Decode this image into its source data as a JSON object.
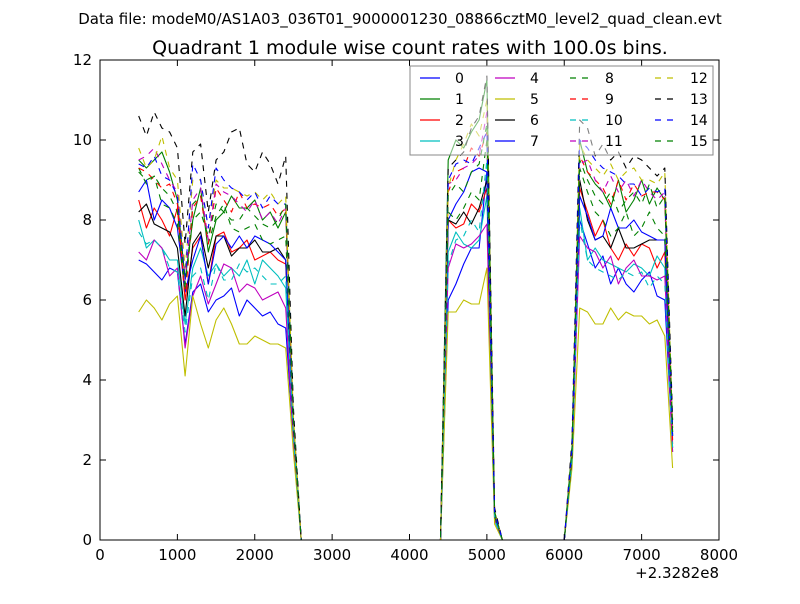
{
  "chart_data": {
    "type": "line",
    "suptitle": "Data file: modeM0/AS1A03_036T01_9000001230_08866cztM0_level2_quad_clean.evt",
    "title": "Quadrant 1 module wise count rates with 100.0s bins.",
    "xlabel": "",
    "ylabel": "",
    "xlim": [
      0,
      8000
    ],
    "ylim": [
      0,
      12
    ],
    "x_offset_label": "+2.3282e8",
    "xticks": [
      "0",
      "1000",
      "2000",
      "3000",
      "4000",
      "5000",
      "6000",
      "7000",
      "8000"
    ],
    "yticks": [
      "0",
      "2",
      "4",
      "6",
      "8",
      "10",
      "12"
    ],
    "grid": false,
    "legend_position": "top-right",
    "x": [
      500,
      600,
      700,
      800,
      900,
      1000,
      1100,
      1200,
      1300,
      1400,
      1500,
      1600,
      1700,
      1800,
      1900,
      2000,
      2100,
      2200,
      2300,
      2400,
      2500,
      2600,
      2700,
      2800,
      2900,
      3000,
      3100,
      3200,
      3300,
      3400,
      3500,
      3600,
      3700,
      3800,
      3900,
      4000,
      4100,
      4200,
      4300,
      4400,
      4500,
      4600,
      4700,
      4800,
      4900,
      5000,
      5100,
      5200,
      5300,
      5400,
      5500,
      5600,
      5700,
      5800,
      5900,
      6000,
      6100,
      6200,
      6300,
      6400,
      6500,
      6600,
      6700,
      6800,
      6900,
      7000,
      7100,
      7200,
      7300,
      7400
    ],
    "series": [
      {
        "name": "0",
        "color": "#0000ff",
        "dash": false,
        "values": [
          7.0,
          6.9,
          6.7,
          6.5,
          6.8,
          6.7,
          4.9,
          6.2,
          6.4,
          5.7,
          6.0,
          6.1,
          6.3,
          5.6,
          6.0,
          5.8,
          5.6,
          5.7,
          5.4,
          5.3,
          2.5,
          0,
          0,
          0,
          0,
          0,
          0,
          0,
          0,
          0,
          0,
          0,
          0,
          0,
          0,
          0,
          0,
          0,
          0,
          0,
          6.0,
          6.4,
          6.9,
          7.3,
          7.3,
          9.2,
          0.5,
          0,
          0,
          0,
          0,
          0,
          0,
          0,
          0,
          0,
          2.0,
          8.0,
          7.4,
          6.8,
          7.1,
          6.4,
          6.8,
          6.4,
          6.2,
          6.5,
          6.7,
          6.1,
          6.0,
          2.3
        ]
      },
      {
        "name": "1",
        "color": "#008000",
        "dash": false,
        "values": [
          9.5,
          9.3,
          9.5,
          9.7,
          9.2,
          8.5,
          6.5,
          8.0,
          8.8,
          7.2,
          8.0,
          8.2,
          8.6,
          8.3,
          8.3,
          8.5,
          8.0,
          8.2,
          7.8,
          8.2,
          3.0,
          0,
          0,
          0,
          0,
          0,
          0,
          0,
          0,
          0,
          0,
          0,
          0,
          0,
          0,
          0,
          0,
          0,
          0,
          0,
          9.5,
          10.0,
          9.8,
          10.2,
          10.5,
          11.5,
          0.6,
          0,
          0,
          0,
          0,
          0,
          0,
          0,
          0,
          0,
          2.2,
          10.0,
          9.2,
          8.9,
          8.7,
          8.3,
          9.0,
          8.2,
          8.5,
          9.0,
          8.4,
          8.8,
          8.5,
          2.8
        ]
      },
      {
        "name": "2",
        "color": "#ff0000",
        "dash": false,
        "values": [
          8.5,
          7.8,
          8.3,
          8.0,
          7.6,
          8.3,
          6.0,
          7.3,
          7.6,
          6.4,
          7.6,
          7.7,
          7.2,
          7.3,
          7.5,
          7.0,
          7.1,
          7.2,
          7.0,
          6.9,
          2.8,
          0,
          0,
          0,
          0,
          0,
          0,
          0,
          0,
          0,
          0,
          0,
          0,
          0,
          0,
          0,
          0,
          0,
          0,
          0,
          8.0,
          7.8,
          7.9,
          8.4,
          8.2,
          8.8,
          0.6,
          0,
          0,
          0,
          0,
          0,
          0,
          0,
          0,
          0,
          2.1,
          8.8,
          8.2,
          7.6,
          8.0,
          7.3,
          7.0,
          7.4,
          7.1,
          7.4,
          7.3,
          6.8,
          7.2,
          2.4
        ]
      },
      {
        "name": "3",
        "color": "#00bfbf",
        "dash": false,
        "values": [
          8.0,
          7.3,
          7.5,
          7.3,
          7.0,
          7.0,
          5.4,
          6.8,
          7.3,
          6.6,
          6.9,
          6.6,
          6.8,
          6.6,
          7.0,
          6.4,
          7.0,
          6.8,
          6.6,
          6.3,
          2.6,
          0,
          0,
          0,
          0,
          0,
          0,
          0,
          0,
          0,
          0,
          0,
          0,
          0,
          0,
          0,
          0,
          0,
          0,
          0,
          7.2,
          7.7,
          7.4,
          7.3,
          7.5,
          8.6,
          0.6,
          0,
          0,
          0,
          0,
          0,
          0,
          0,
          0,
          0,
          2.0,
          8.3,
          7.0,
          7.3,
          7.0,
          6.9,
          6.8,
          6.7,
          6.9,
          6.8,
          6.6,
          7.1,
          6.8,
          2.2
        ]
      },
      {
        "name": "4",
        "color": "#bf00bf",
        "dash": false,
        "values": [
          7.2,
          7.0,
          7.5,
          7.3,
          6.6,
          6.8,
          4.8,
          6.1,
          6.6,
          5.9,
          6.4,
          6.9,
          6.8,
          6.2,
          6.4,
          6.3,
          6.0,
          6.1,
          6.2,
          5.8,
          2.5,
          0,
          0,
          0,
          0,
          0,
          0,
          0,
          0,
          0,
          0,
          0,
          0,
          0,
          0,
          0,
          0,
          0,
          0,
          0,
          6.8,
          7.4,
          7.3,
          7.4,
          7.6,
          7.9,
          0.5,
          0,
          0,
          0,
          0,
          0,
          0,
          0,
          0,
          0,
          2.0,
          7.6,
          7.3,
          7.2,
          6.8,
          7.1,
          6.4,
          6.8,
          7.0,
          6.6,
          6.6,
          6.5,
          6.6,
          2.2
        ]
      },
      {
        "name": "5",
        "color": "#bfbf00",
        "dash": false,
        "values": [
          5.7,
          6.0,
          5.8,
          5.5,
          5.9,
          6.1,
          4.1,
          6.1,
          5.4,
          4.8,
          5.5,
          5.8,
          5.4,
          4.9,
          4.9,
          5.1,
          5.0,
          4.9,
          4.9,
          4.8,
          2.2,
          0,
          0,
          0,
          0,
          0,
          0,
          0,
          0,
          0,
          0,
          0,
          0,
          0,
          0,
          0,
          0,
          0,
          0,
          0,
          5.7,
          5.7,
          6.0,
          5.9,
          5.9,
          6.8,
          0.4,
          0,
          0,
          0,
          0,
          0,
          0,
          0,
          0,
          0,
          1.8,
          5.8,
          5.7,
          5.4,
          5.4,
          5.8,
          5.5,
          5.7,
          5.6,
          5.6,
          5.4,
          5.5,
          5.1,
          1.8
        ]
      },
      {
        "name": "6",
        "color": "#000000",
        "dash": false,
        "values": [
          8.2,
          8.4,
          7.9,
          7.8,
          7.7,
          7.3,
          5.6,
          7.4,
          7.7,
          6.8,
          7.6,
          7.6,
          7.1,
          7.3,
          7.3,
          7.5,
          7.2,
          7.2,
          7.3,
          7.0,
          2.8,
          0,
          0,
          0,
          0,
          0,
          0,
          0,
          0,
          0,
          0,
          0,
          0,
          0,
          0,
          0,
          0,
          0,
          0,
          0,
          8.0,
          7.9,
          8.2,
          7.9,
          8.3,
          9.0,
          0.6,
          0,
          0,
          0,
          0,
          0,
          0,
          0,
          0,
          0,
          2.1,
          9.0,
          8.0,
          7.5,
          7.6,
          7.3,
          7.8,
          7.3,
          7.3,
          7.4,
          7.5,
          7.5,
          7.5,
          2.6
        ]
      },
      {
        "name": "7",
        "color": "#0000ff",
        "dash": false,
        "values": [
          8.7,
          9.0,
          8.0,
          8.5,
          8.3,
          7.8,
          6.2,
          7.0,
          7.6,
          6.4,
          7.4,
          7.6,
          7.3,
          7.6,
          7.3,
          7.6,
          7.5,
          7.4,
          7.2,
          7.0,
          2.9,
          0,
          0,
          0,
          0,
          0,
          0,
          0,
          0,
          0,
          0,
          0,
          0,
          0,
          0,
          0,
          0,
          0,
          0,
          0,
          8.0,
          8.4,
          8.7,
          9.2,
          9.3,
          9.2,
          0.6,
          0,
          0,
          0,
          0,
          0,
          0,
          0,
          0,
          0,
          2.2,
          8.6,
          8.1,
          7.5,
          7.6,
          8.3,
          7.8,
          7.8,
          8.0,
          7.7,
          7.6,
          7.5,
          7.5,
          2.6
        ]
      },
      {
        "name": "8",
        "color": "#008000",
        "dash": true,
        "values": [
          9.3,
          8.9,
          9.1,
          8.4,
          8.3,
          7.9,
          6.2,
          8.4,
          8.6,
          7.4,
          8.1,
          8.4,
          7.8,
          7.7,
          7.8,
          7.9,
          7.5,
          7.4,
          7.5,
          7.6,
          2.9,
          0,
          0,
          0,
          0,
          0,
          0,
          0,
          0,
          0,
          0,
          0,
          0,
          0,
          0,
          0,
          0,
          0,
          0,
          0,
          8.2,
          8.0,
          8.3,
          8.7,
          8.5,
          10.0,
          0.6,
          0,
          0,
          0,
          0,
          0,
          0,
          0,
          0,
          0,
          2.2,
          9.3,
          8.7,
          8.2,
          8.0,
          7.6,
          7.8,
          8.2,
          7.6,
          7.8,
          8.2,
          7.8,
          7.6,
          2.7
        ]
      },
      {
        "name": "9",
        "color": "#ff0000",
        "dash": true,
        "values": [
          9.3,
          9.2,
          9.0,
          8.8,
          8.9,
          8.4,
          6.0,
          8.3,
          8.6,
          7.4,
          8.8,
          8.5,
          8.2,
          8.7,
          8.3,
          8.4,
          8.3,
          8.4,
          8.1,
          8.3,
          3.0,
          0,
          0,
          0,
          0,
          0,
          0,
          0,
          0,
          0,
          0,
          0,
          0,
          0,
          0,
          0,
          0,
          0,
          0,
          0,
          8.7,
          9.2,
          9.3,
          9.8,
          9.6,
          10.2,
          0.7,
          0,
          0,
          0,
          0,
          0,
          0,
          0,
          0,
          0,
          2.3,
          9.6,
          9.2,
          9.0,
          8.8,
          8.4,
          9.0,
          8.5,
          8.9,
          8.6,
          8.7,
          8.7,
          8.5,
          2.5
        ]
      },
      {
        "name": "10",
        "color": "#00bfbf",
        "dash": true,
        "values": [
          7.7,
          7.4,
          7.5,
          7.3,
          6.8,
          6.7,
          5.2,
          6.6,
          6.8,
          6.0,
          6.9,
          6.5,
          6.5,
          6.9,
          6.7,
          6.8,
          6.6,
          6.4,
          6.4,
          6.6,
          2.6,
          0,
          0,
          0,
          0,
          0,
          0,
          0,
          0,
          0,
          0,
          0,
          0,
          0,
          0,
          0,
          0,
          0,
          0,
          0,
          6.9,
          7.5,
          7.6,
          8.0,
          7.7,
          9.5,
          0.5,
          0,
          0,
          0,
          0,
          0,
          0,
          0,
          0,
          0,
          2.0,
          8.0,
          7.0,
          6.8,
          6.7,
          6.6,
          6.5,
          6.7,
          6.6,
          6.7,
          6.3,
          6.6,
          6.4,
          2.3
        ]
      },
      {
        "name": "11",
        "color": "#bf00bf",
        "dash": true,
        "values": [
          9.5,
          9.6,
          9.8,
          9.4,
          9.0,
          8.7,
          6.5,
          8.5,
          8.8,
          7.5,
          8.9,
          8.7,
          8.6,
          8.4,
          8.2,
          8.5,
          8.0,
          8.2,
          7.9,
          8.3,
          3.0,
          0,
          0,
          0,
          0,
          0,
          0,
          0,
          0,
          0,
          0,
          0,
          0,
          0,
          0,
          0,
          0,
          0,
          0,
          0,
          8.9,
          9.0,
          9.3,
          9.4,
          9.6,
          10.7,
          0.7,
          0,
          0,
          0,
          0,
          0,
          0,
          0,
          0,
          0,
          2.3,
          9.4,
          9.5,
          9.0,
          8.7,
          9.1,
          8.7,
          9.0,
          8.6,
          9.0,
          8.7,
          8.5,
          8.7,
          2.6
        ]
      },
      {
        "name": "12",
        "color": "#bfbf00",
        "dash": true,
        "values": [
          9.8,
          9.3,
          9.5,
          10.1,
          9.3,
          9.0,
          6.8,
          9.0,
          9.0,
          7.8,
          9.0,
          8.8,
          8.8,
          8.7,
          8.6,
          8.7,
          8.5,
          8.7,
          8.4,
          8.6,
          3.1,
          0,
          0,
          0,
          0,
          0,
          0,
          0,
          0,
          0,
          0,
          0,
          0,
          0,
          0,
          0,
          0,
          0,
          0,
          0,
          8.8,
          9.5,
          9.9,
          10.4,
          10.1,
          11.0,
          0.7,
          0,
          0,
          0,
          0,
          0,
          0,
          0,
          0,
          0,
          2.3,
          9.9,
          9.5,
          9.3,
          9.1,
          9.4,
          9.0,
          9.2,
          9.3,
          9.0,
          9.0,
          8.9,
          9.2,
          2.8
        ]
      },
      {
        "name": "13",
        "color": "#000000",
        "dash": true,
        "values": [
          10.6,
          10.1,
          10.7,
          10.3,
          10.2,
          9.8,
          7.4,
          9.7,
          9.9,
          8.2,
          9.5,
          9.7,
          10.2,
          10.3,
          9.4,
          9.2,
          9.7,
          9.4,
          8.9,
          9.6,
          3.3,
          0,
          0,
          0,
          0,
          0,
          0,
          0,
          0,
          0,
          0,
          0,
          0,
          0,
          0,
          0,
          0,
          0,
          0,
          0,
          9.3,
          9.5,
          9.7,
          10.3,
          10.6,
          11.6,
          0.8,
          0,
          0,
          0,
          0,
          0,
          0,
          0,
          0,
          0,
          2.5,
          10.5,
          10.3,
          9.6,
          9.9,
          9.5,
          9.7,
          9.3,
          9.6,
          9.5,
          9.3,
          9.1,
          9.3,
          3.0
        ]
      },
      {
        "name": "14",
        "color": "#0000ff",
        "dash": true,
        "values": [
          9.4,
          9.3,
          9.6,
          9.1,
          9.0,
          8.6,
          6.5,
          9.4,
          9.0,
          7.8,
          9.3,
          9.0,
          8.8,
          8.7,
          8.5,
          8.7,
          8.3,
          8.6,
          8.4,
          8.4,
          3.0,
          0,
          0,
          0,
          0,
          0,
          0,
          0,
          0,
          0,
          0,
          0,
          0,
          0,
          0,
          0,
          0,
          0,
          0,
          0,
          9.0,
          9.4,
          9.5,
          9.4,
          9.8,
          10.2,
          0.7,
          0,
          0,
          0,
          0,
          0,
          0,
          0,
          0,
          0,
          2.3,
          10.0,
          9.8,
          9.5,
          9.3,
          9.2,
          9.1,
          8.9,
          8.9,
          8.6,
          8.8,
          8.7,
          8.8,
          2.6
        ]
      },
      {
        "name": "15",
        "color": "#008000",
        "dash": true,
        "values": [
          9.2,
          9.0,
          9.1,
          8.8,
          8.6,
          8.2,
          6.4,
          8.0,
          8.2,
          7.6,
          8.4,
          8.2,
          8.0,
          8.0,
          8.3,
          8.1,
          7.9,
          7.8,
          8.0,
          8.4,
          3.0,
          0,
          0,
          0,
          0,
          0,
          0,
          0,
          0,
          0,
          0,
          0,
          0,
          0,
          0,
          0,
          0,
          0,
          0,
          0,
          8.6,
          8.9,
          8.7,
          9.2,
          9.4,
          10.4,
          0.7,
          0,
          0,
          0,
          0,
          0,
          0,
          0,
          0,
          0,
          2.3,
          9.5,
          9.0,
          8.6,
          8.4,
          8.7,
          8.2,
          8.5,
          8.7,
          8.4,
          8.9,
          8.3,
          8.6,
          2.7
        ]
      }
    ]
  }
}
